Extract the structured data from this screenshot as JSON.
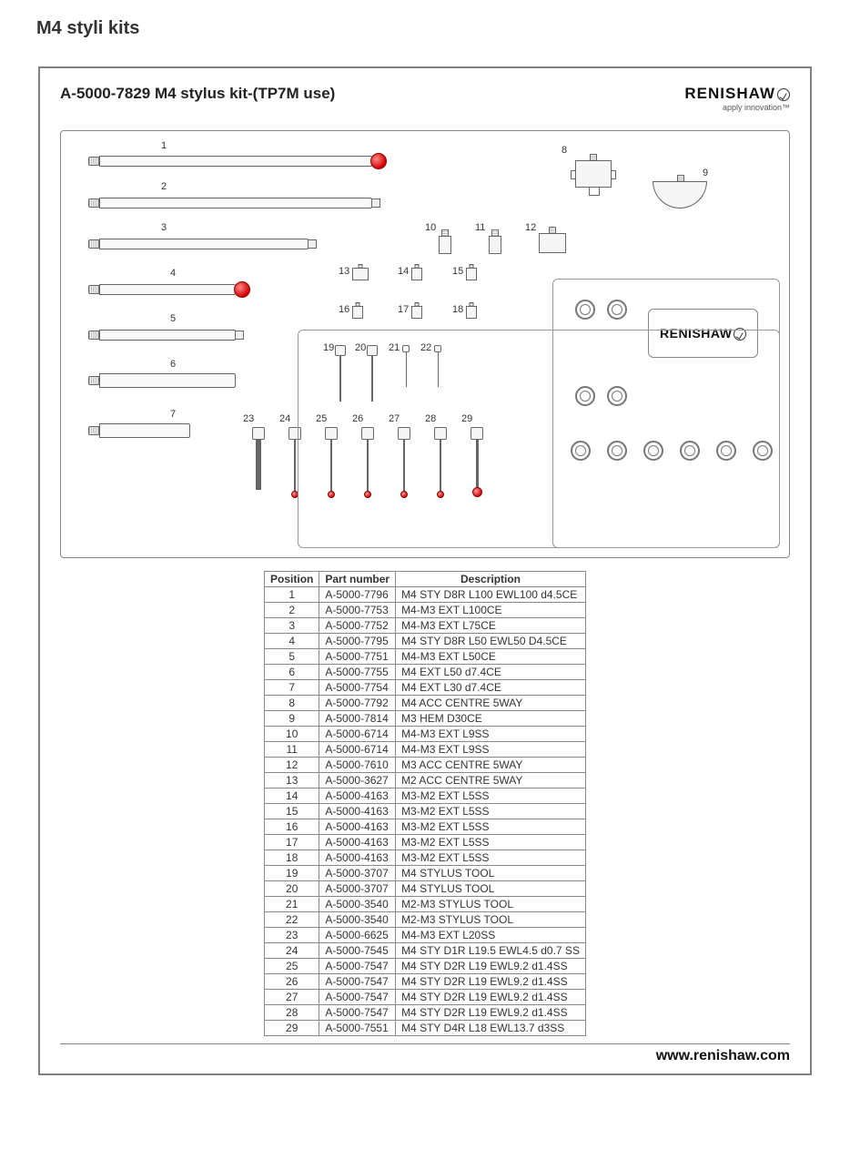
{
  "page_title": "M4 styli kits",
  "kit_title": "A-5000-7829 M4 stylus kit-(TP7M use)",
  "brand": {
    "name": "RENISHAW",
    "tagline": "apply innovation™"
  },
  "footer_url": "www.renishaw.com",
  "table": {
    "columns": [
      "Position",
      "Part number",
      "Description"
    ],
    "rows": [
      [
        "1",
        "A-5000-7796",
        "M4 STY D8R L100 EWL100 d4.5CE"
      ],
      [
        "2",
        "A-5000-7753",
        "M4-M3 EXT L100CE"
      ],
      [
        "3",
        "A-5000-7752",
        "M4-M3 EXT L75CE"
      ],
      [
        "4",
        "A-5000-7795",
        "M4 STY D8R L50 EWL50 D4.5CE"
      ],
      [
        "5",
        "A-5000-7751",
        "M4-M3 EXT L50CE"
      ],
      [
        "6",
        "A-5000-7755",
        "M4 EXT L50 d7.4CE"
      ],
      [
        "7",
        "A-5000-7754",
        "M4 EXT L30 d7.4CE"
      ],
      [
        "8",
        "A-5000-7792",
        "M4 ACC CENTRE 5WAY"
      ],
      [
        "9",
        "A-5000-7814",
        "M3 HEM D30CE"
      ],
      [
        "10",
        "A-5000-6714",
        "M4-M3 EXT L9SS"
      ],
      [
        "11",
        "A-5000-6714",
        "M4-M3 EXT L9SS"
      ],
      [
        "12",
        "A-5000-7610",
        "M3 ACC CENTRE 5WAY"
      ],
      [
        "13",
        "A-5000-3627",
        "M2 ACC CENTRE 5WAY"
      ],
      [
        "14",
        "A-5000-4163",
        "M3-M2 EXT L5SS"
      ],
      [
        "15",
        "A-5000-4163",
        "M3-M2 EXT L5SS"
      ],
      [
        "16",
        "A-5000-4163",
        "M3-M2 EXT L5SS"
      ],
      [
        "17",
        "A-5000-4163",
        "M3-M2 EXT L5SS"
      ],
      [
        "18",
        "A-5000-4163",
        "M3-M2 EXT L5SS"
      ],
      [
        "19",
        "A-5000-3707",
        "M4 STYLUS TOOL"
      ],
      [
        "20",
        "A-5000-3707",
        "M4 STYLUS TOOL"
      ],
      [
        "21",
        "A-5000-3540",
        "M2-M3  STYLUS TOOL"
      ],
      [
        "22",
        "A-5000-3540",
        "M2-M3  STYLUS TOOL"
      ],
      [
        "23",
        "A-5000-6625",
        "M4-M3 EXT L20SS"
      ],
      [
        "24",
        "A-5000-7545",
        "M4 STY D1R L19.5 EWL4.5 d0.7 SS"
      ],
      [
        "25",
        "A-5000-7547",
        "M4 STY D2R L19 EWL9.2 d1.4SS"
      ],
      [
        "26",
        "A-5000-7547",
        "M4 STY D2R L19 EWL9.2 d1.4SS"
      ],
      [
        "27",
        "A-5000-7547",
        "M4 STY D2R L19 EWL9.2 d1.4SS"
      ],
      [
        "28",
        "A-5000-7547",
        "M4 STY D2R L19 EWL9.2 d1.4SS"
      ],
      [
        "29",
        "A-5000-7551",
        "M4 STY D4R L18 EWL13.7 d3SS"
      ]
    ]
  },
  "diagram_labels": {
    "p1": "1",
    "p2": "2",
    "p3": "3",
    "p4": "4",
    "p5": "5",
    "p6": "6",
    "p7": "7",
    "p8": "8",
    "p9": "9",
    "p10": "10",
    "p11": "11",
    "p12": "12",
    "p13": "13",
    "p14": "14",
    "p15": "15",
    "p16": "16",
    "p17": "17",
    "p18": "18",
    "p19": "19",
    "p20": "20",
    "p21": "21",
    "p22": "22",
    "p23": "23",
    "p24": "24",
    "p25": "25",
    "p26": "26",
    "p27": "27",
    "p28": "28",
    "p29": "29"
  }
}
